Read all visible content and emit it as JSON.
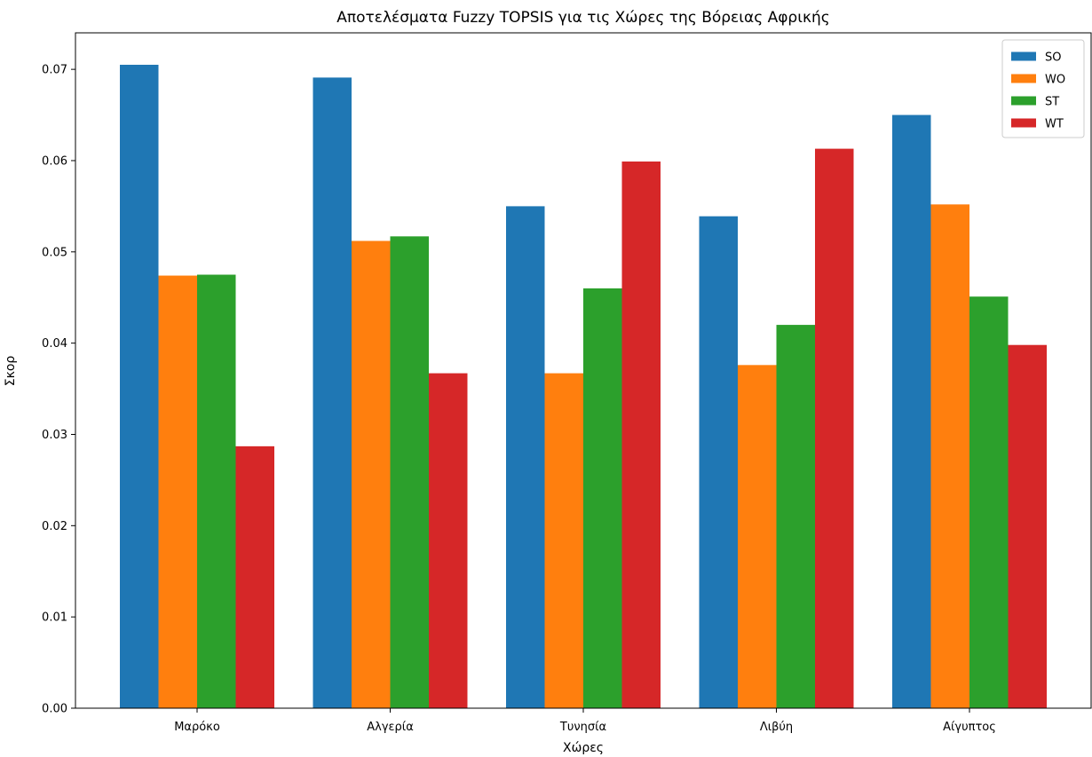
{
  "chart_data": {
    "type": "bar",
    "title": "Αποτελέσματα Fuzzy TOPSIS για τις Χώρες της Βόρειας Αφρικής",
    "xlabel": "Χώρες",
    "ylabel": "Σκορ",
    "categories": [
      "Μαρόκο",
      "Αλγερία",
      "Τυνησία",
      "Λιβύη",
      "Αίγυπτος"
    ],
    "series": [
      {
        "name": "SO",
        "color": "#1f77b4",
        "values": [
          0.0705,
          0.0691,
          0.055,
          0.0539,
          0.065
        ]
      },
      {
        "name": "WO",
        "color": "#ff7f0e",
        "values": [
          0.0474,
          0.0512,
          0.0367,
          0.0376,
          0.0552
        ]
      },
      {
        "name": "ST",
        "color": "#2ca02c",
        "values": [
          0.0475,
          0.0517,
          0.046,
          0.042,
          0.0451
        ]
      },
      {
        "name": "WT",
        "color": "#d62728",
        "values": [
          0.0287,
          0.0367,
          0.0599,
          0.0613,
          0.0398
        ]
      }
    ],
    "ylim": [
      0,
      0.074
    ],
    "yticks": [
      "0.00",
      "0.01",
      "0.02",
      "0.03",
      "0.04",
      "0.05",
      "0.06",
      "0.07"
    ],
    "grid": false,
    "legend_position": "top-right"
  }
}
